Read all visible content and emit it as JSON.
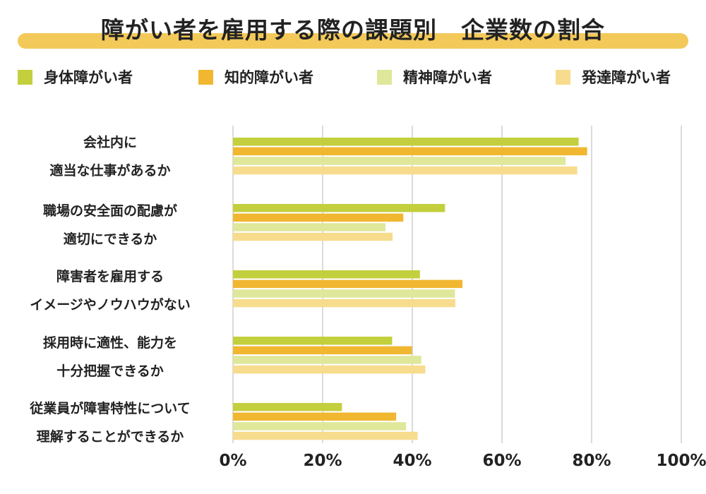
{
  "title": "障がい者を雇用する際の課題別　企業数の割合",
  "colors": {
    "title_bar": "#f3c95a",
    "grid": "#b7b7b7",
    "series": [
      "#c3cf3d",
      "#f1b731",
      "#dfe79a",
      "#f7dc8d"
    ]
  },
  "legend": [
    {
      "label": "身体障がい者"
    },
    {
      "label": "知的障がい者"
    },
    {
      "label": "精神障がい者"
    },
    {
      "label": "発達障がい者"
    }
  ],
  "chart_data": {
    "type": "bar",
    "orientation": "horizontal",
    "title": "障がい者を雇用する際の課題別　企業数の割合",
    "categories": [
      [
        "会社内に",
        "適当な仕事があるか"
      ],
      [
        "職場の安全面の配慮が",
        "適切にできるか"
      ],
      [
        "障害者を雇用する",
        "イメージやノウハウがない"
      ],
      [
        "採用時に適性、能力を",
        "十分把握できるか"
      ],
      [
        "従業員が障害特性について",
        "理解することができるか"
      ]
    ],
    "series": [
      {
        "name": "身体障がい者",
        "values": [
          77.1,
          47.3,
          41.7,
          35.5,
          24.3
        ]
      },
      {
        "name": "知的障がい者",
        "values": [
          79.0,
          38.0,
          51.2,
          39.9,
          36.4
        ]
      },
      {
        "name": "精神障がい者",
        "values": [
          74.2,
          34.0,
          49.5,
          42.0,
          38.6
        ]
      },
      {
        "name": "発達障がい者",
        "values": [
          76.8,
          35.6,
          49.6,
          42.9,
          41.2
        ]
      }
    ],
    "xlim": [
      0,
      100
    ],
    "ticks": [
      "0%",
      "20%",
      "40%",
      "60%",
      "80%",
      "100%"
    ],
    "grid": true,
    "legend_position": "top"
  }
}
